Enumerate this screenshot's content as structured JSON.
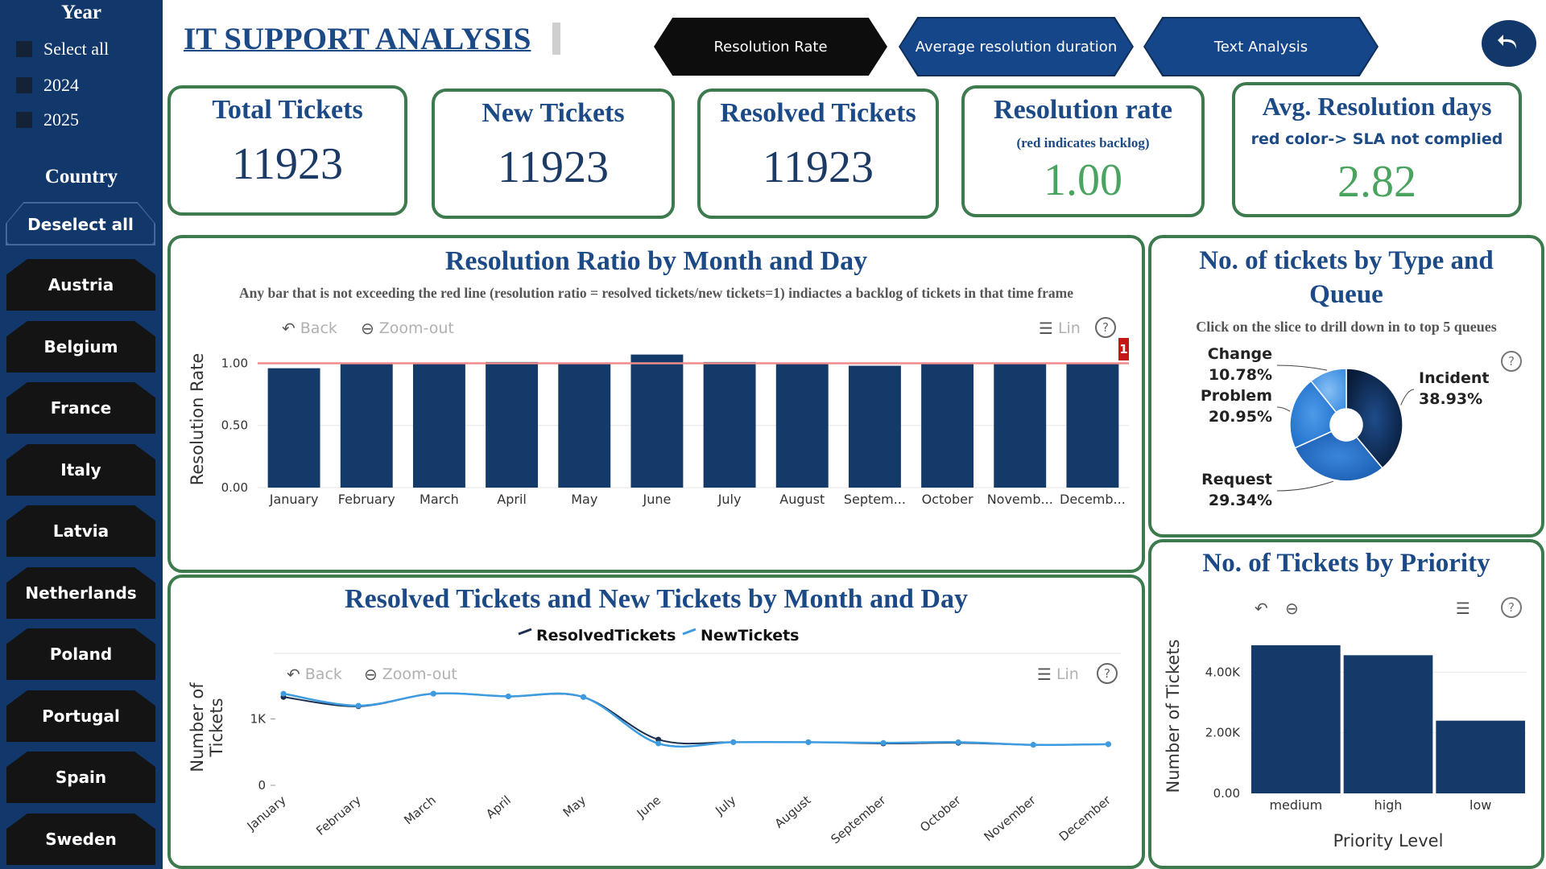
{
  "sidebar": {
    "year_heading": "Year",
    "year_options": [
      "Select all",
      "2024",
      "2025"
    ],
    "country_heading": "Country",
    "deselect_label": "Deselect all",
    "countries": [
      "Austria",
      "Belgium",
      "France",
      "Italy",
      "Latvia",
      "Netherlands",
      "Poland",
      "Portugal",
      "Spain",
      "Sweden"
    ]
  },
  "header": {
    "title": "IT SUPPORT ANALYSIS",
    "nav": [
      "Resolution Rate",
      "Average resolution duration",
      "Text Analysis"
    ],
    "back_icon": "undo-arrow-icon"
  },
  "kpis": {
    "total": {
      "title": "Total Tickets",
      "value": "11923"
    },
    "new": {
      "title": "New Tickets",
      "value": "11923"
    },
    "resolved": {
      "title": "Resolved Tickets",
      "value": "11923"
    },
    "rate": {
      "title": "Resolution rate",
      "subtitle": "(red indicates backlog)",
      "value": "1.00"
    },
    "avg": {
      "title": "Avg. Resolution days",
      "subtitle": "red color-> SLA not complied",
      "value": "2.82"
    }
  },
  "ratio_panel": {
    "title": "Resolution Ratio by Month and Day",
    "note": "Any bar that is not exceeding the red line (resolution ratio = resolved tickets/new tickets=1) indiactes a backlog of tickets in that time frame",
    "back": "Back",
    "zoom_out": "Zoom-out",
    "lin": "Lin",
    "help": "?",
    "marker": "1"
  },
  "lines_panel": {
    "title": "Resolved Tickets and New Tickets by Month and Day",
    "back": "Back",
    "zoom_out": "Zoom-out",
    "lin": "Lin",
    "help": "?"
  },
  "type_panel": {
    "title_line1": "No. of tickets by Type and",
    "title_line2": "Queue",
    "note": "Click on the slice to drill down in to top 5 queues",
    "help": "?"
  },
  "priority_panel": {
    "title": "No. of Tickets by Priority",
    "help": "?"
  },
  "colors": {
    "navy": "#12386b",
    "dark_bar": "#133a68",
    "green_border": "#3d7a4e",
    "value_green": "#4aa35f",
    "ratio_line": "#f08c8c",
    "new_line": "#3d9be0",
    "resolved_line": "#1c2f4e"
  },
  "chart_data": [
    {
      "type": "bar",
      "title": "Resolution Ratio by Month and Day",
      "ylabel": "Resolution Rate",
      "categories": [
        "January",
        "February",
        "March",
        "April",
        "May",
        "June",
        "July",
        "August",
        "Septem...",
        "October",
        "Novemb...",
        "Decemb..."
      ],
      "values": [
        0.96,
        1.0,
        1.0,
        1.01,
        1.0,
        1.07,
        1.01,
        1.0,
        0.98,
        1.0,
        1.0,
        1.0
      ],
      "yticks": [
        "0.00",
        "0.50",
        "1.00"
      ],
      "ylim": [
        0,
        1.1
      ],
      "reference_line": 1.0
    },
    {
      "type": "line",
      "title": "Resolved Tickets and New Tickets by Month and Day",
      "ylabel": "Number of Tickets",
      "categories": [
        "January",
        "February",
        "March",
        "April",
        "May",
        "June",
        "July",
        "August",
        "September",
        "October",
        "November",
        "December"
      ],
      "series": [
        {
          "name": "ResolvedTickets",
          "values": [
            1330,
            1190,
            1380,
            1340,
            1330,
            690,
            650,
            650,
            630,
            640,
            610,
            620
          ]
        },
        {
          "name": "NewTickets",
          "values": [
            1380,
            1200,
            1380,
            1340,
            1330,
            630,
            650,
            650,
            640,
            650,
            610,
            620
          ]
        }
      ],
      "yticks": [
        "0",
        "1K"
      ],
      "ylim": [
        0,
        1600
      ],
      "legend": "top-center"
    },
    {
      "type": "pie",
      "title": "No. of tickets by Type and Queue",
      "labels": [
        "Incident",
        "Request",
        "Problem",
        "Change"
      ],
      "values": [
        38.93,
        29.34,
        20.95,
        10.78
      ],
      "display": [
        "38.93%",
        "29.34%",
        "20.95%",
        "10.78%"
      ]
    },
    {
      "type": "bar",
      "title": "No. of Tickets by Priority",
      "xlabel": "Priority Level",
      "ylabel": "Number of Tickets",
      "categories": [
        "medium",
        "high",
        "low"
      ],
      "values": [
        4890,
        4560,
        2400
      ],
      "yticks": [
        "0.00",
        "2.00K",
        "4.00K"
      ],
      "ylim": [
        0,
        5100
      ]
    }
  ]
}
